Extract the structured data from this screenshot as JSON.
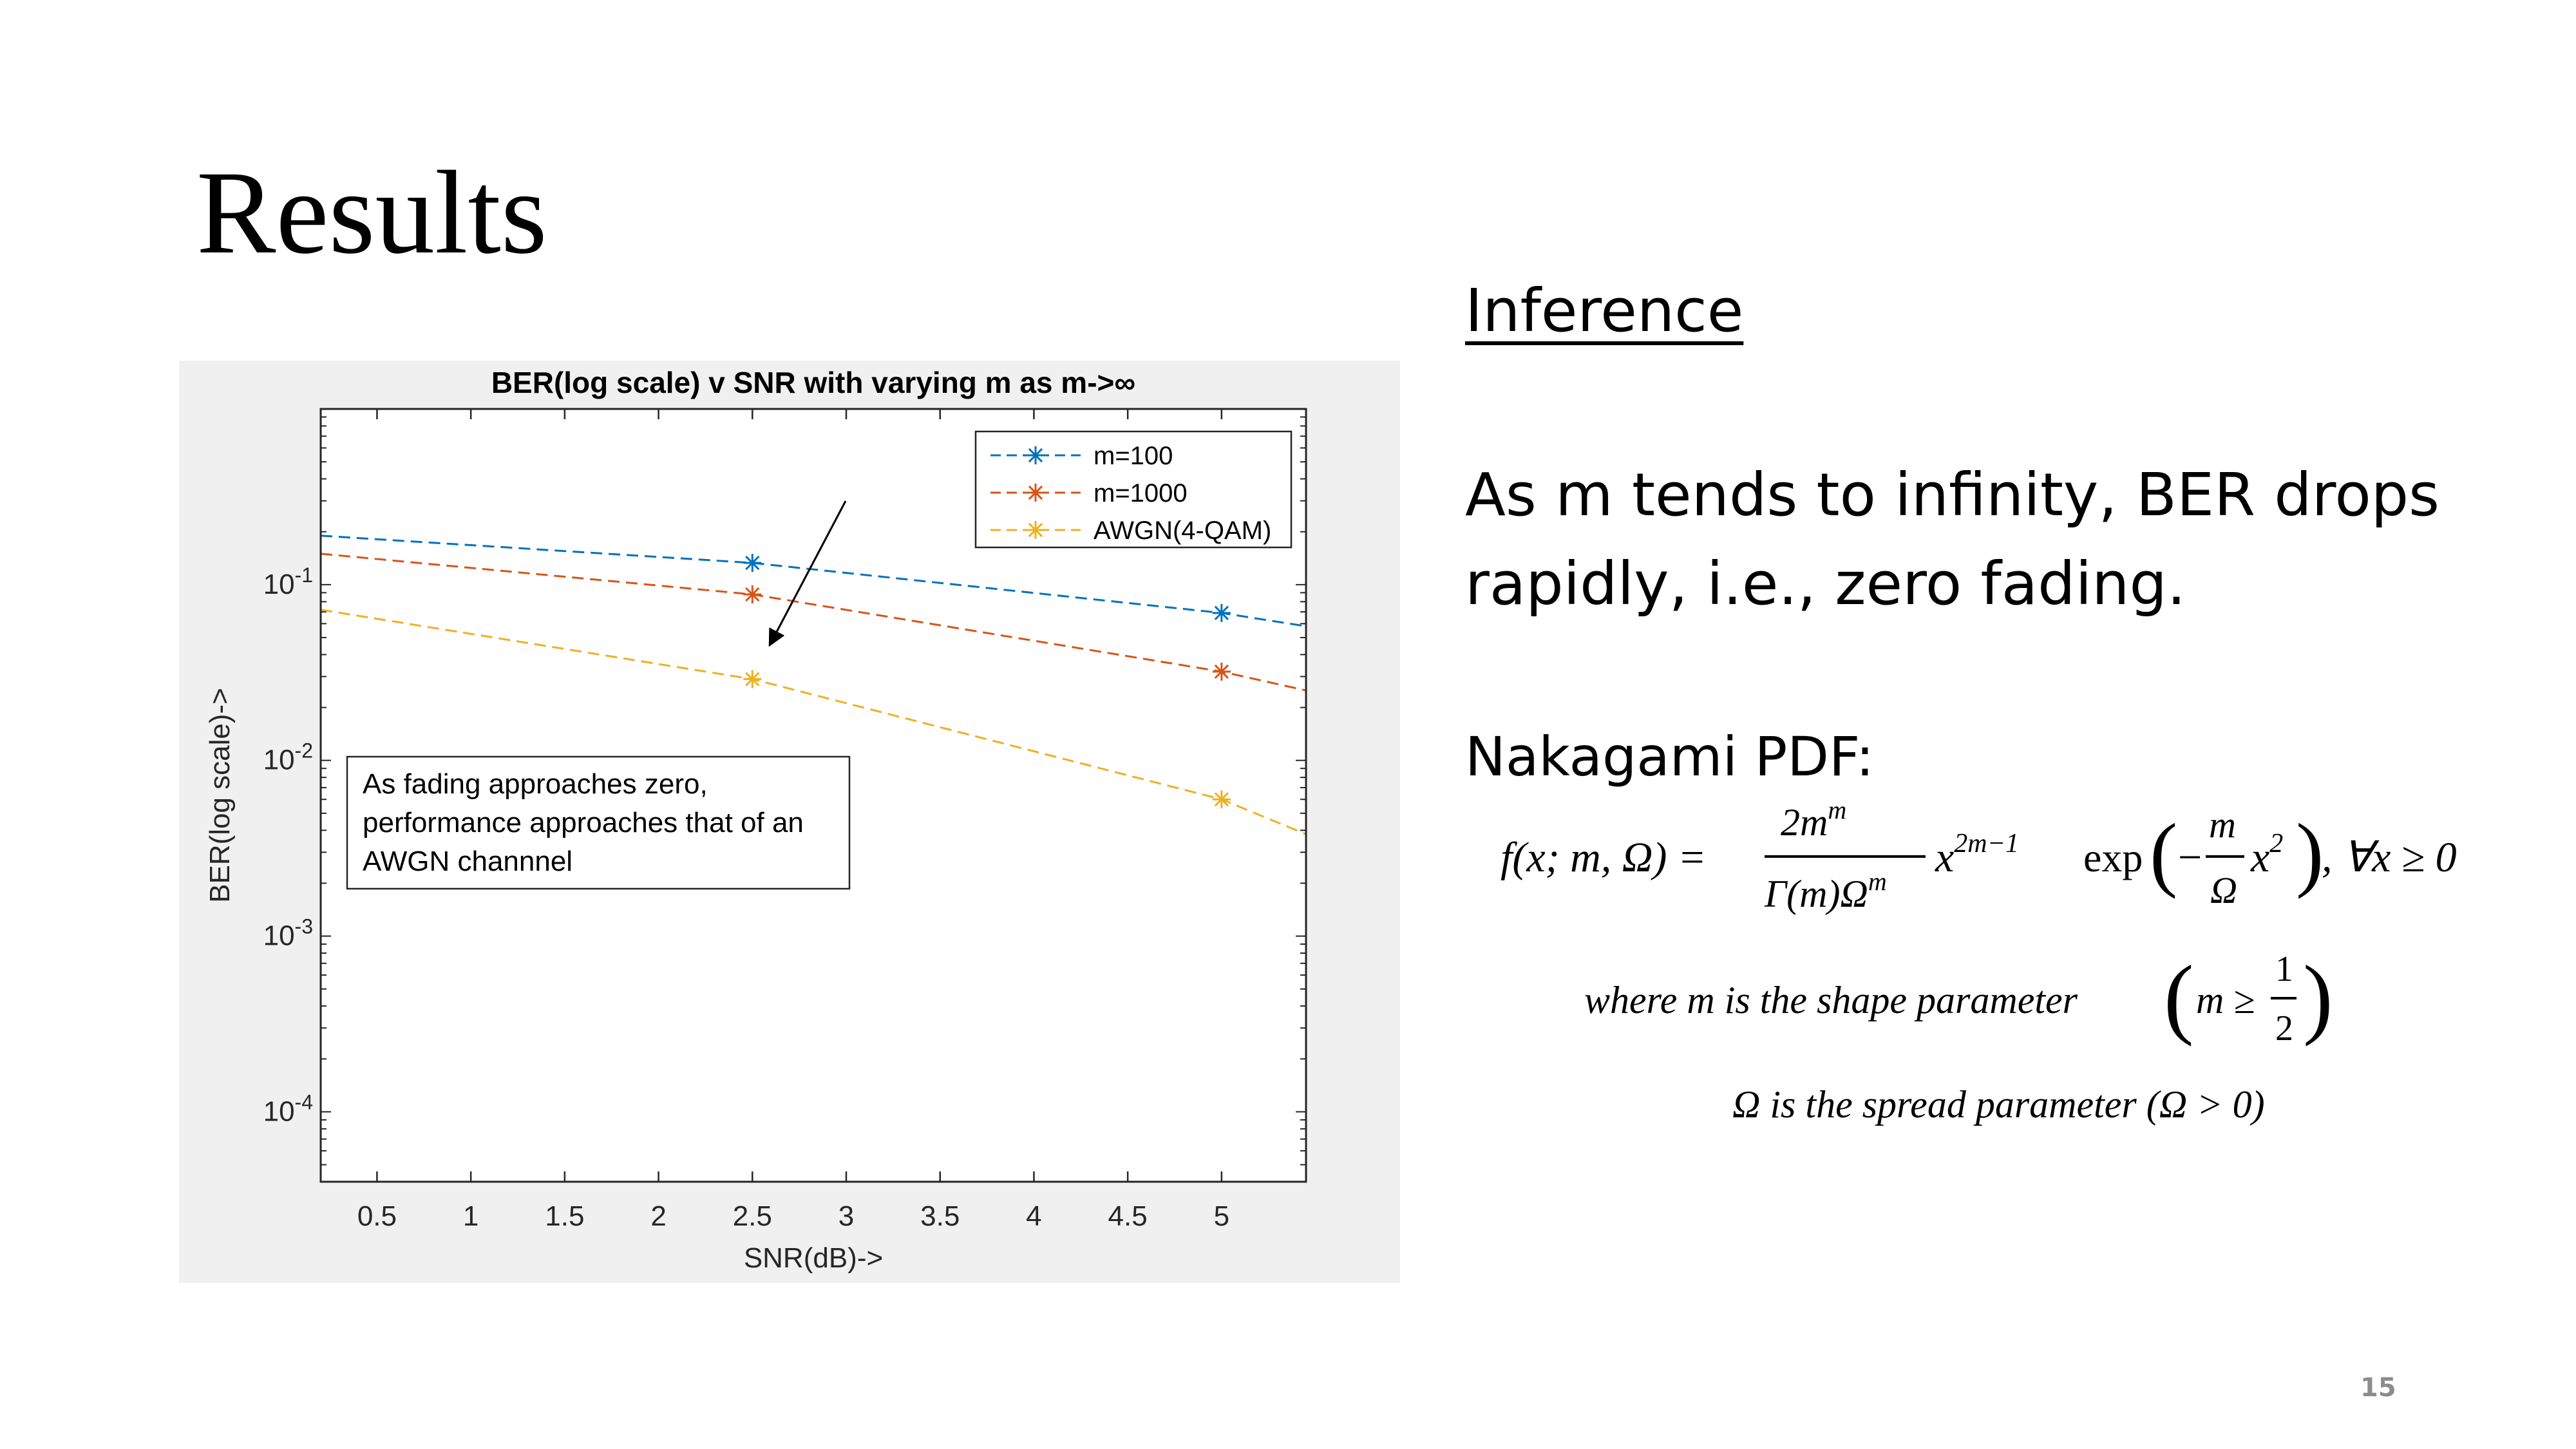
{
  "slide": {
    "title": "Results",
    "page_number": "15"
  },
  "chart_data": {
    "type": "line",
    "title": "BER(log scale) v SNR with varying m as m->∞",
    "xlabel": "SNR(dB)->",
    "ylabel": "BER(log scale)->",
    "xlim": [
      0.2,
      5.45
    ],
    "ylim": [
      4e-05,
      1.0
    ],
    "yscale": "log",
    "xticks": [
      "0.5",
      "1",
      "1.5",
      "2",
      "2.5",
      "3",
      "3.5",
      "4",
      "4.5",
      "5"
    ],
    "yticks": [
      {
        "base": "10",
        "exp": "-1"
      },
      {
        "base": "10",
        "exp": "-2"
      },
      {
        "base": "10",
        "exp": "-3"
      },
      {
        "base": "10",
        "exp": "-4"
      }
    ],
    "legend_position": "top-right",
    "series": [
      {
        "name": "m=100",
        "color": "#0072BD",
        "x": [
          0.2,
          2.5,
          5,
          5.45
        ],
        "y": [
          0.19,
          0.133,
          0.069,
          0.058
        ]
      },
      {
        "name": "m=1000",
        "color": "#D95319",
        "x": [
          0.2,
          2.5,
          5,
          5.45
        ],
        "y": [
          0.15,
          0.088,
          0.032,
          0.025
        ]
      },
      {
        "name": "AWGN(4-QAM)",
        "color": "#EDB120",
        "x": [
          0.2,
          2.5,
          5,
          5.45
        ],
        "y": [
          0.072,
          0.029,
          0.006,
          0.0038
        ]
      }
    ],
    "annotation": {
      "lines": [
        "As fading approaches zero,",
        "performance approaches that of an",
        "AWGN channnel"
      ]
    }
  },
  "inference": {
    "heading": "Inference",
    "body": "As m tends to infinity, BER drops rapidly, i.e., zero fading."
  },
  "nakagami": {
    "heading": "Nakagami PDF:",
    "where_text": "where m is the shape parameter",
    "omega_text": "Ω is the spread parameter (Ω > 0)"
  }
}
